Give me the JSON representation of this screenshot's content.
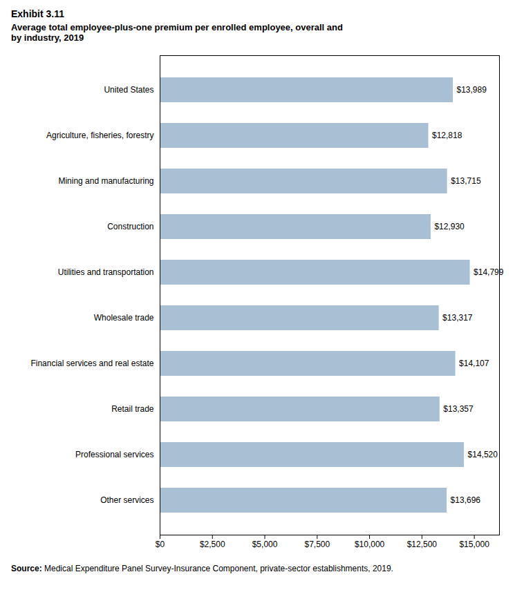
{
  "chart_data": {
    "type": "bar",
    "orientation": "horizontal",
    "title": "Exhibit 3.11",
    "subtitle": "Average total employee-plus-one premium per enrolled employee, overall and\nby industry, 2019",
    "categories": [
      "Other services",
      "Professional services",
      "Retail trade",
      "Financial services and real estate",
      "Wholesale trade",
      "Utilities and transportation",
      "Construction",
      "Mining and manufacturing",
      "Agriculture, fisheries, forestry",
      "United States"
    ],
    "values": [
      13696,
      14520,
      13357,
      14107,
      13317,
      14799,
      12930,
      13715,
      12818,
      13989
    ],
    "value_labels": [
      "$13,696",
      "$14,520",
      "$13,357",
      "$14,107",
      "$13,317",
      "$14,799",
      "$12,930",
      "$13,715",
      "$12,818",
      "$13,989"
    ],
    "data_labels": true,
    "color": "#a8bfd4",
    "xlim": [
      0,
      16200
    ],
    "xticks": [
      {
        "value": 0,
        "label": "$0"
      },
      {
        "value": 2500,
        "label": "$2,500"
      },
      {
        "value": 5000,
        "label": "$5,000"
      },
      {
        "value": 7500,
        "label": "$7,500"
      },
      {
        "value": 10000,
        "label": "$10,000"
      },
      {
        "value": 12500,
        "label": "$12,500"
      },
      {
        "value": 15000,
        "label": "$15,000"
      }
    ],
    "grid": false,
    "caption": "Source: Medical Expenditure Panel Survey-Insurance Component, private-sector establishments, 2019."
  }
}
